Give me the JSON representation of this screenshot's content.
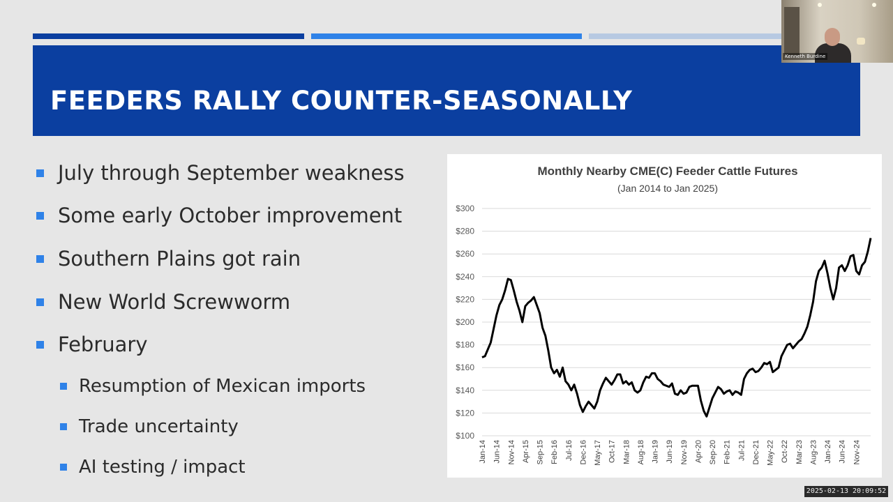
{
  "slide": {
    "title": "FEEDERS RALLY COUNTER-SEASONALLY",
    "accent_colors": [
      "#0b3fa0",
      "#2f82e8",
      "#b7c9e2"
    ],
    "bullets": [
      "July through September weakness",
      "Some early October improvement",
      "Southern Plains got rain",
      "New World Screwworm",
      "February"
    ],
    "sub_bullets": [
      "Resumption of Mexican imports",
      "Trade uncertainty",
      "AI testing / impact"
    ]
  },
  "webcam": {
    "name": "Kenneth Burdine"
  },
  "recording": {
    "timestamp": "2025-02-13 20:09:52"
  },
  "chart_data": {
    "type": "line",
    "title": "Monthly Nearby CME(C) Feeder Cattle Futures",
    "subtitle": "(Jan 2014 to Jan 2025)",
    "ylim": [
      100,
      300
    ],
    "yticks": [
      "$100",
      "$120",
      "$140",
      "$160",
      "$180",
      "$200",
      "$220",
      "$240",
      "$260",
      "$280",
      "$300"
    ],
    "xticks": [
      "Jan-14",
      "Jun-14",
      "Nov-14",
      "Apr-15",
      "Sep-15",
      "Feb-16",
      "Jul-16",
      "Dec-16",
      "May-17",
      "Oct-17",
      "Mar-18",
      "Aug-18",
      "Jan-19",
      "Jun-19",
      "Nov-19",
      "Apr-20",
      "Sep-20",
      "Feb-21",
      "Jul-21",
      "Dec-21",
      "May-22",
      "Oct-22",
      "Mar-23",
      "Aug-23",
      "Jan-24",
      "Jun-24",
      "Nov-24"
    ],
    "grid": true,
    "line_color": "#000000",
    "series": [
      {
        "values": [
          169,
          170,
          176,
          182,
          194,
          206,
          215,
          220,
          228,
          238,
          237,
          228,
          218,
          210,
          200,
          214,
          217,
          219,
          222,
          215,
          208,
          195,
          188,
          175,
          160,
          155,
          158,
          152,
          160,
          148,
          145,
          140,
          145,
          137,
          127,
          121,
          126,
          130,
          127,
          124,
          130,
          140,
          146,
          151,
          148,
          145,
          149,
          154,
          154,
          146,
          148,
          145,
          147,
          140,
          138,
          140,
          147,
          152,
          151,
          155,
          155,
          150,
          148,
          145,
          144,
          143,
          146,
          137,
          136,
          140,
          137,
          138,
          143,
          144,
          144,
          144,
          131,
          122,
          117,
          125,
          133,
          138,
          143,
          141,
          137,
          139,
          140,
          136,
          139,
          138,
          136,
          150,
          155,
          158,
          159,
          156,
          157,
          160,
          164,
          163,
          165,
          156,
          158,
          160,
          170,
          175,
          180,
          181,
          177,
          180,
          183,
          185,
          190,
          196,
          206,
          218,
          236,
          245,
          248,
          254,
          243,
          230,
          220,
          230,
          248,
          250,
          245,
          250,
          258,
          259,
          245,
          242,
          250,
          253,
          262,
          274
        ]
      }
    ]
  }
}
